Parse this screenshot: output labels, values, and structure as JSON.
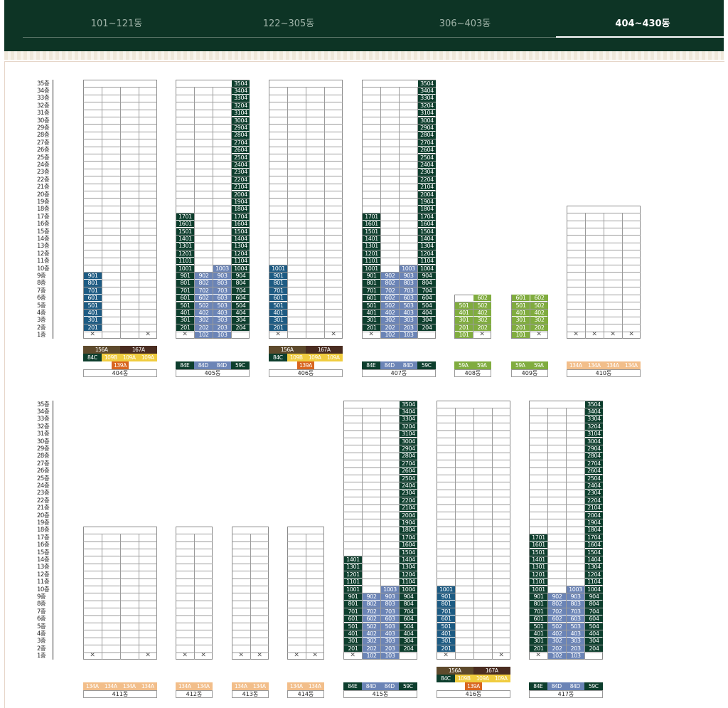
{
  "tabs": [
    {
      "label": "101~121동",
      "active": false
    },
    {
      "label": "122~305동",
      "active": false
    },
    {
      "label": "306~403동",
      "active": false
    },
    {
      "label": "404~430동",
      "active": true
    }
  ],
  "floor_suffix": "층",
  "colors": {
    "84E": "#0d3e2d",
    "84C": "#0d3e2d",
    "84D": "#6b84b6",
    "59C": "#0d3e2d",
    "59A": "#80ac3f",
    "101": "#1d5b83",
    "109A": "#f0cc3f",
    "109B": "#f0cc3f",
    "134A": "#f2be8a",
    "139A": "#d8651f",
    "156A": "#5e4a2c",
    "167A": "#4a2c20"
  },
  "chart_data": {
    "type": "table",
    "buildings": [
      {
        "name": "404동",
        "floors": 35,
        "lines": [
          "01",
          "02",
          "03",
          "04"
        ],
        "units": {
          "01": [
            2,
            9,
            "101"
          ]
        },
        "legend": [
          [
            "156A",
            "167A"
          ],
          [
            "84C",
            "109B",
            "109A",
            "109A"
          ],
          [
            "",
            "139A",
            ""
          ]
        ],
        "x_lines": [
          1,
          4
        ]
      },
      {
        "name": "405동",
        "floors": 35,
        "lines": [
          "01",
          "02",
          "03",
          "04"
        ],
        "units": {
          "01": [
            2,
            17,
            "84E"
          ],
          "02": [
            1,
            9,
            "84D"
          ],
          "03": [
            1,
            10,
            "84D"
          ],
          "04": [
            2,
            35,
            "59C"
          ]
        },
        "legend": [
          [
            "84E",
            "84D",
            "84D",
            "59C"
          ]
        ],
        "x_lines": [
          1
        ]
      },
      {
        "name": "406동",
        "floors": 35,
        "lines": [
          "01",
          "02",
          "03",
          "04"
        ],
        "units": {
          "01": [
            2,
            10,
            "101"
          ]
        },
        "legend": [
          [
            "156A",
            "167A"
          ],
          [
            "84C",
            "109B",
            "109A",
            "109A"
          ],
          [
            "",
            "139A",
            ""
          ]
        ],
        "x_lines": [
          1,
          4
        ]
      },
      {
        "name": "407동",
        "floors": 35,
        "lines": [
          "01",
          "02",
          "03",
          "04"
        ],
        "units": {
          "01": [
            2,
            17,
            "84E"
          ],
          "02": [
            1,
            9,
            "84D"
          ],
          "03": [
            1,
            10,
            "84D"
          ],
          "04": [
            2,
            35,
            "59C"
          ]
        },
        "legend": [
          [
            "84E",
            "84D",
            "84D",
            "59C"
          ]
        ],
        "x_lines": [
          1
        ]
      },
      {
        "name": "408동",
        "floors": 6,
        "lines": [
          "01",
          "02"
        ],
        "units": {
          "01": [
            1,
            5,
            "59A"
          ],
          "02": [
            2,
            6,
            "59A"
          ]
        },
        "legend": [
          [
            "59A",
            "59A"
          ]
        ],
        "x_lines": [
          2
        ]
      },
      {
        "name": "409동",
        "floors": 6,
        "lines": [
          "01",
          "02"
        ],
        "units": {
          "01": [
            1,
            6,
            "59A"
          ],
          "02": [
            2,
            6,
            "59A"
          ]
        },
        "legend": [
          [
            "59A",
            "59A"
          ]
        ],
        "x_lines": [
          2
        ]
      },
      {
        "name": "410동",
        "floors": 18,
        "lines": [
          "01",
          "02",
          "03",
          "04"
        ],
        "units": {},
        "legend": [
          [
            "134A",
            "134A",
            "134A",
            "134A"
          ]
        ],
        "x_lines": [
          1,
          2,
          3,
          4
        ]
      },
      {
        "name": "411동",
        "floors": 18,
        "lines": [
          "01",
          "02",
          "03",
          "04"
        ],
        "units": {},
        "legend": [
          [
            "134A",
            "134A",
            "134A",
            "134A"
          ]
        ],
        "x_lines": [
          1,
          4
        ]
      },
      {
        "name": "412동",
        "floors": 18,
        "lines": [
          "01",
          "02"
        ],
        "units": {},
        "legend": [
          [
            "134A",
            "134A"
          ]
        ],
        "x_lines": [
          1,
          2
        ]
      },
      {
        "name": "413동",
        "floors": 18,
        "lines": [
          "01",
          "02"
        ],
        "units": {},
        "legend": [
          [
            "134A",
            "134A"
          ]
        ],
        "x_lines": [
          1,
          2
        ]
      },
      {
        "name": "414동",
        "floors": 18,
        "lines": [
          "01",
          "02"
        ],
        "units": {},
        "legend": [
          [
            "134A",
            "134A"
          ]
        ],
        "x_lines": [
          1,
          2
        ]
      },
      {
        "name": "415동",
        "floors": 35,
        "lines": [
          "01",
          "02",
          "03",
          "04"
        ],
        "units": {
          "01": [
            2,
            14,
            "84E"
          ],
          "02": [
            1,
            9,
            "84D"
          ],
          "03": [
            1,
            10,
            "84D"
          ],
          "04": [
            2,
            35,
            "59C"
          ]
        },
        "legend": [
          [
            "84E",
            "84D",
            "84D",
            "59C"
          ]
        ],
        "x_lines": [
          1
        ]
      },
      {
        "name": "416동",
        "floors": 35,
        "lines": [
          "01",
          "02",
          "03",
          "04"
        ],
        "units": {
          "01": [
            2,
            10,
            "101"
          ]
        },
        "legend": [
          [
            "156A",
            "167A"
          ],
          [
            "84C",
            "109B",
            "109A",
            "109A"
          ],
          [
            "",
            "139A",
            ""
          ]
        ],
        "x_lines": [
          1,
          4
        ]
      },
      {
        "name": "417동",
        "floors": 35,
        "lines": [
          "01",
          "02",
          "03",
          "04"
        ],
        "units": {
          "01": [
            2,
            17,
            "84E"
          ],
          "02": [
            1,
            9,
            "84D"
          ],
          "03": [
            1,
            10,
            "84D"
          ],
          "04": [
            2,
            35,
            "59C"
          ]
        },
        "legend": [
          [
            "84E",
            "84D",
            "84D",
            "59C"
          ]
        ],
        "x_lines": [
          1
        ]
      }
    ]
  }
}
